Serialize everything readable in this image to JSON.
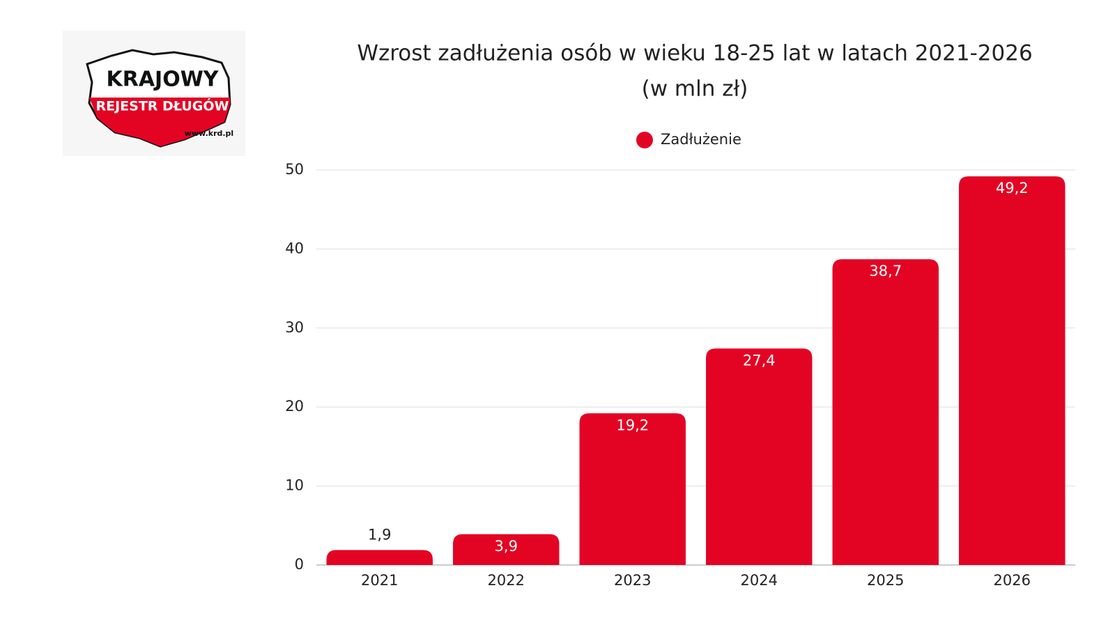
{
  "logo": {
    "name": "KRAJOWY",
    "subname": "REJESTR DŁUGÓW",
    "url": "www.krd.pl"
  },
  "chart_data": {
    "type": "bar",
    "title": "Wzrost zadłużenia osób w wieku 18-25 lat w latach 2021-2026",
    "subtitle": "(w mln zł)",
    "categories": [
      "2021",
      "2022",
      "2023",
      "2024",
      "2025",
      "2026"
    ],
    "series": [
      {
        "name": "Zadłużenie",
        "color": "#e30424",
        "values": [
          1.9,
          3.9,
          19.2,
          27.4,
          38.7,
          49.2
        ],
        "value_labels": [
          "1,9",
          "3,9",
          "19,2",
          "27,4",
          "38,7",
          "49,2"
        ]
      }
    ],
    "ylim": [
      0,
      50
    ],
    "yticks": [
      0,
      10,
      20,
      30,
      40,
      50
    ],
    "grid": true
  }
}
